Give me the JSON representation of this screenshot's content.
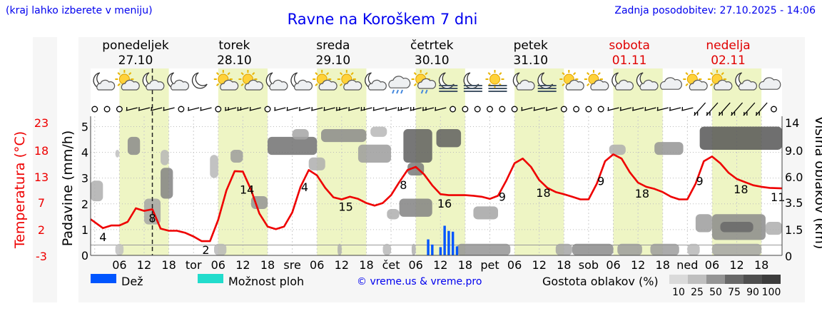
{
  "header": {
    "menu_hint": "(kraj lahko izberete v meniju)",
    "title": "Ravne na Koroškem 7 dni",
    "updated": "Zadnja posodobitev: 27.10.2025 - 14:06"
  },
  "legend": {
    "rain": "Dež",
    "storm": "Možnost ploh",
    "credit": "© vreme.us & vreme.pro",
    "cloud_density": "Gostota oblakov (%)",
    "density_ticks": [
      "10",
      "25",
      "50",
      "75",
      "90",
      "100"
    ]
  },
  "colors": {
    "temperature": "#ee0000",
    "rain": "#0055ff",
    "storm": "#22dccc",
    "day_band": "#eef5c4",
    "night_band": "#ffffff",
    "weekend": "#e00000"
  },
  "chart_data": {
    "type": "line",
    "title": "Ravne na Koroškem 7 dni",
    "y_left_label": "Padavine (mm/h)",
    "y_left_ticks": [
      "0",
      "1",
      "2",
      "3",
      "4",
      "5"
    ],
    "y_left_range": [
      0,
      5.4
    ],
    "y_temp_label": "Temperatura (°C)",
    "y_temp_ticks": [
      "23",
      "18",
      "13",
      "7",
      "2",
      "-3"
    ],
    "y_right_label": "Višina oblakov (km)",
    "y_right_ticks": [
      "14",
      "9.0",
      "6.0",
      "3.5",
      "1.5",
      "0"
    ],
    "days": [
      {
        "name": "ponedeljek",
        "date": "27.10",
        "weekend": false
      },
      {
        "name": "torek",
        "date": "28.10",
        "weekend": false
      },
      {
        "name": "sreda",
        "date": "29.10",
        "weekend": false
      },
      {
        "name": "četrtek",
        "date": "30.10",
        "weekend": false
      },
      {
        "name": "petek",
        "date": "31.10",
        "weekend": false
      },
      {
        "name": "sobota",
        "date": "01.11",
        "weekend": true
      },
      {
        "name": "nedelja",
        "date": "02.11",
        "weekend": true
      }
    ],
    "x_tick_labels": [
      "06",
      "12",
      "18",
      "tor",
      "06",
      "12",
      "18",
      "sre",
      "06",
      "12",
      "18",
      "čet",
      "06",
      "12",
      "18",
      "pet",
      "06",
      "12",
      "18",
      "sob",
      "06",
      "12",
      "18",
      "ned",
      "06",
      "12",
      "18"
    ],
    "x_range_hours": [
      -1,
      167
    ],
    "now_hour": 14,
    "temperature_series": {
      "name": "Temperatura",
      "hours": [
        -1,
        2,
        4,
        6,
        8,
        10,
        12,
        14,
        16,
        18,
        20,
        22,
        24,
        26,
        28,
        30,
        32,
        34,
        36,
        38,
        40,
        42,
        44,
        46,
        48,
        50,
        52,
        54,
        56,
        58,
        60,
        62,
        64,
        66,
        68,
        70,
        72,
        74,
        76,
        78,
        80,
        82,
        84,
        86,
        88,
        90,
        92,
        94,
        96,
        98,
        100,
        102,
        104,
        106,
        108,
        110,
        112,
        114,
        116,
        118,
        120,
        122,
        124,
        126,
        128,
        130,
        132,
        134,
        136,
        138,
        140,
        142,
        144,
        146,
        148,
        150,
        152,
        154,
        156,
        158,
        160,
        162,
        164,
        167
      ],
      "values": [
        5.8,
        4.1,
        4.6,
        4.6,
        5.3,
        7.9,
        7.4,
        7.7,
        4.0,
        3.6,
        3.6,
        3.2,
        2.5,
        1.6,
        1.6,
        5.7,
        11.3,
        15.0,
        14.9,
        11.4,
        6.9,
        4.4,
        3.9,
        4.4,
        7.1,
        12.0,
        15.2,
        14.2,
        11.8,
        10.0,
        9.6,
        10.1,
        9.7,
        8.9,
        8.4,
        8.9,
        10.4,
        12.9,
        15.2,
        15.8,
        14.4,
        12.3,
        10.6,
        10.4,
        10.4,
        10.4,
        10.3,
        10.1,
        9.7,
        10.3,
        13.2,
        16.5,
        17.4,
        15.8,
        13.3,
        11.8,
        11.0,
        10.6,
        10.1,
        9.6,
        9.6,
        12.6,
        16.9,
        18.2,
        17.4,
        14.8,
        12.8,
        12.0,
        11.6,
        11.0,
        10.1,
        9.6,
        9.6,
        12.6,
        16.9,
        17.8,
        16.5,
        14.7,
        13.5,
        12.9,
        12.3,
        12.0,
        11.8,
        11.7
      ]
    },
    "temperature_labels": [
      {
        "hour": 2,
        "text": "4"
      },
      {
        "hour": 14,
        "text": "8"
      },
      {
        "hour": 27,
        "text": "2"
      },
      {
        "hour": 37,
        "text": "14"
      },
      {
        "hour": 51,
        "text": "4"
      },
      {
        "hour": 61,
        "text": "15"
      },
      {
        "hour": 75,
        "text": "8"
      },
      {
        "hour": 85,
        "text": "16"
      },
      {
        "hour": 99,
        "text": "9"
      },
      {
        "hour": 109,
        "text": "18"
      },
      {
        "hour": 123,
        "text": "9"
      },
      {
        "hour": 133,
        "text": "18"
      },
      {
        "hour": 147,
        "text": "9"
      },
      {
        "hour": 157,
        "text": "18"
      },
      {
        "hour": 166,
        "text": "11"
      }
    ],
    "rain_series": {
      "name": "Dež",
      "hours": [
        81,
        82,
        84,
        85,
        86,
        87,
        88
      ],
      "values": [
        0.62,
        0.42,
        0.32,
        1.15,
        0.95,
        0.92,
        0.35
      ]
    },
    "cloud_blocks": [
      {
        "h0": -1,
        "h1": 2,
        "v0": 2.1,
        "v1": 2.9,
        "d": 35
      },
      {
        "h0": 5,
        "h1": 6,
        "v0": 3.8,
        "v1": 4.1,
        "d": 25
      },
      {
        "h0": 8,
        "h1": 11,
        "v0": 3.9,
        "v1": 4.6,
        "d": 55
      },
      {
        "h0": 12,
        "h1": 16,
        "v0": 1.2,
        "v1": 2.2,
        "d": 40
      },
      {
        "h0": 16,
        "h1": 19,
        "v0": 2.2,
        "v1": 3.4,
        "d": 60
      },
      {
        "h0": 16,
        "h1": 18,
        "v0": 3.5,
        "v1": 4.1,
        "d": 30
      },
      {
        "h0": 28,
        "h1": 30,
        "v0": 3.0,
        "v1": 3.9,
        "d": 30
      },
      {
        "h0": 33,
        "h1": 36,
        "v0": 3.6,
        "v1": 4.1,
        "d": 45
      },
      {
        "h0": 38,
        "h1": 42,
        "v0": 1.8,
        "v1": 2.3,
        "d": 50
      },
      {
        "h0": 42,
        "h1": 54,
        "v0": 3.9,
        "v1": 4.6,
        "d": 70
      },
      {
        "h0": 48,
        "h1": 52,
        "v0": 4.5,
        "v1": 4.9,
        "d": 40
      },
      {
        "h0": 55,
        "h1": 66,
        "v0": 4.4,
        "v1": 4.9,
        "d": 55
      },
      {
        "h0": 52,
        "h1": 56,
        "v0": 3.3,
        "v1": 3.8,
        "d": 35
      },
      {
        "h0": 64,
        "h1": 72,
        "v0": 3.6,
        "v1": 4.3,
        "d": 45
      },
      {
        "h0": 67,
        "h1": 71,
        "v0": 4.6,
        "v1": 5.0,
        "d": 30
      },
      {
        "h0": 71,
        "h1": 74,
        "v0": 1.4,
        "v1": 1.8,
        "d": 35
      },
      {
        "h0": 75,
        "h1": 82,
        "v0": 3.6,
        "v1": 4.9,
        "d": 80
      },
      {
        "h0": 76,
        "h1": 80,
        "v0": 3.1,
        "v1": 3.6,
        "d": 65
      },
      {
        "h0": 83,
        "h1": 89,
        "v0": 4.2,
        "v1": 4.9,
        "d": 80
      },
      {
        "h0": 74,
        "h1": 82,
        "v0": 1.5,
        "v1": 2.2,
        "d": 60
      },
      {
        "h0": 92,
        "h1": 98,
        "v0": 1.4,
        "v1": 1.9,
        "d": 40
      },
      {
        "h0": 125,
        "h1": 129,
        "v0": 3.9,
        "v1": 4.3,
        "d": 35
      },
      {
        "h0": 136,
        "h1": 143,
        "v0": 3.9,
        "v1": 4.4,
        "d": 50
      },
      {
        "h0": 147,
        "h1": 167,
        "v0": 4.1,
        "v1": 5.0,
        "d": 85
      },
      {
        "h0": 146,
        "h1": 150,
        "v0": 0.9,
        "v1": 1.6,
        "d": 45
      },
      {
        "h0": 150,
        "h1": 163,
        "v0": 0.6,
        "v1": 1.6,
        "d": 55
      },
      {
        "h0": 152,
        "h1": 160,
        "v0": 0.9,
        "v1": 1.3,
        "d": 75
      },
      {
        "h0": 163,
        "h1": 167,
        "v0": 0.8,
        "v1": 1.3,
        "d": 35
      },
      {
        "h0": 5,
        "h1": 7,
        "v0": 0.0,
        "v1": 0.45,
        "d": 25
      },
      {
        "h0": 29,
        "h1": 32,
        "v0": 0.0,
        "v1": 0.45,
        "d": 30
      },
      {
        "h0": 59,
        "h1": 60,
        "v0": 0.0,
        "v1": 0.45,
        "d": 35
      },
      {
        "h0": 70,
        "h1": 72,
        "v0": 0.0,
        "v1": 0.45,
        "d": 30
      },
      {
        "h0": 77,
        "h1": 78,
        "v0": 0.0,
        "v1": 0.45,
        "d": 35
      },
      {
        "h0": 88,
        "h1": 101,
        "v0": 0.0,
        "v1": 0.45,
        "d": 50
      },
      {
        "h0": 112,
        "h1": 116,
        "v0": 0.0,
        "v1": 0.45,
        "d": 40
      },
      {
        "h0": 116,
        "h1": 126,
        "v0": 0.0,
        "v1": 0.45,
        "d": 55
      },
      {
        "h0": 127,
        "h1": 133,
        "v0": 0.0,
        "v1": 0.45,
        "d": 45
      },
      {
        "h0": 135,
        "h1": 142,
        "v0": 0.0,
        "v1": 0.45,
        "d": 45
      },
      {
        "h0": 144,
        "h1": 147,
        "v0": 0.0,
        "v1": 0.45,
        "d": 30
      },
      {
        "h0": 150,
        "h1": 162,
        "v0": 0.0,
        "v1": 0.45,
        "d": 40
      }
    ],
    "weather_icons": [
      {
        "hour": 0,
        "icon": "moon-cloud-icon"
      },
      {
        "hour": 6,
        "icon": "sun-cloud-icon"
      },
      {
        "hour": 12,
        "icon": "moon-cloud-icon"
      },
      {
        "hour": 18,
        "icon": "moon-cloud-icon"
      },
      {
        "hour": 24,
        "icon": "moon-icon"
      },
      {
        "hour": 30,
        "icon": "sun-cloud-icon"
      },
      {
        "hour": 36,
        "icon": "sun-cloud-icon"
      },
      {
        "hour": 42,
        "icon": "moon-cloud-icon"
      },
      {
        "hour": 48,
        "icon": "moon-cloud-icon"
      },
      {
        "hour": 54,
        "icon": "sun-cloud-icon"
      },
      {
        "hour": 60,
        "icon": "sun-cloud-icon"
      },
      {
        "hour": 66,
        "icon": "moon-cloud-icon"
      },
      {
        "hour": 72,
        "icon": "cloud-rain-icon"
      },
      {
        "hour": 78,
        "icon": "sun-cloud-rain-icon"
      },
      {
        "hour": 84,
        "icon": "moon-fog-icon"
      },
      {
        "hour": 90,
        "icon": "moon-fog-icon"
      },
      {
        "hour": 96,
        "icon": "sun-fog-icon"
      },
      {
        "hour": 102,
        "icon": "moon-cloud-icon"
      },
      {
        "hour": 108,
        "icon": "moon-fog-icon"
      },
      {
        "hour": 114,
        "icon": "sun-cloud-icon"
      },
      {
        "hour": 120,
        "icon": "sun-cloud-icon"
      },
      {
        "hour": 126,
        "icon": "moon-cloud-icon"
      },
      {
        "hour": 132,
        "icon": "moon-cloud-icon"
      },
      {
        "hour": 138,
        "icon": "cloud-icon"
      },
      {
        "hour": 144,
        "icon": "sun-cloud-icon"
      },
      {
        "hour": 150,
        "icon": "sun-cloud-icon"
      },
      {
        "hour": 156,
        "icon": "moon-cloud-icon"
      },
      {
        "hour": 162,
        "icon": "cloud-icon"
      }
    ],
    "wind": [
      {
        "hour": 0,
        "calm": true
      },
      {
        "hour": 3,
        "calm": true
      },
      {
        "hour": 6,
        "calm": true
      },
      {
        "hour": 9,
        "calm": false,
        "barbs": 1
      },
      {
        "hour": 12,
        "calm": false,
        "barbs": 1
      },
      {
        "hour": 15,
        "calm": false,
        "barbs": 1
      },
      {
        "hour": 18,
        "calm": false,
        "barbs": 1
      },
      {
        "hour": 21,
        "calm": true
      },
      {
        "hour": 24,
        "calm": false,
        "barbs": 1
      },
      {
        "hour": 27,
        "calm": false,
        "barbs": 1
      },
      {
        "hour": 30,
        "calm": true
      },
      {
        "hour": 33,
        "calm": false,
        "barbs": 2
      },
      {
        "hour": 36,
        "calm": false,
        "barbs": 2
      },
      {
        "hour": 39,
        "calm": false,
        "barbs": 1
      },
      {
        "hour": 42,
        "calm": true
      },
      {
        "hour": 45,
        "calm": false,
        "barbs": 1
      },
      {
        "hour": 48,
        "calm": false,
        "barbs": 1
      },
      {
        "hour": 51,
        "calm": false,
        "barbs": 1
      },
      {
        "hour": 54,
        "calm": false,
        "barbs": 1
      },
      {
        "hour": 57,
        "calm": false,
        "barbs": 1
      },
      {
        "hour": 60,
        "calm": false,
        "barbs": 2
      },
      {
        "hour": 63,
        "calm": false,
        "barbs": 1
      },
      {
        "hour": 66,
        "calm": false,
        "barbs": 2
      },
      {
        "hour": 69,
        "calm": false,
        "barbs": 1
      },
      {
        "hour": 72,
        "calm": false,
        "barbs": 1
      },
      {
        "hour": 75,
        "calm": false,
        "barbs": 2
      },
      {
        "hour": 78,
        "calm": false,
        "barbs": 2
      },
      {
        "hour": 81,
        "calm": false,
        "barbs": 2
      },
      {
        "hour": 84,
        "calm": false,
        "barbs": 1
      },
      {
        "hour": 87,
        "calm": true
      },
      {
        "hour": 90,
        "calm": true
      },
      {
        "hour": 93,
        "calm": true
      },
      {
        "hour": 96,
        "calm": true
      },
      {
        "hour": 99,
        "calm": true
      },
      {
        "hour": 102,
        "calm": true
      },
      {
        "hour": 105,
        "calm": false,
        "barbs": 1
      },
      {
        "hour": 108,
        "calm": false,
        "barbs": 1
      },
      {
        "hour": 111,
        "calm": false,
        "barbs": 1
      },
      {
        "hour": 114,
        "calm": true
      },
      {
        "hour": 117,
        "calm": true
      },
      {
        "hour": 120,
        "calm": true
      },
      {
        "hour": 123,
        "calm": true
      },
      {
        "hour": 126,
        "calm": false,
        "barbs": 1
      },
      {
        "hour": 129,
        "calm": false,
        "barbs": 1
      },
      {
        "hour": 132,
        "calm": false,
        "barbs": 1
      },
      {
        "hour": 135,
        "calm": false,
        "barbs": 1
      },
      {
        "hour": 138,
        "calm": false,
        "barbs": 1
      },
      {
        "hour": 141,
        "calm": false,
        "barbs": 1
      },
      {
        "hour": 144,
        "calm": false,
        "barbs": 1
      },
      {
        "hour": 147,
        "calm": false,
        "barbs": 2
      },
      {
        "hour": 150,
        "calm": false,
        "barbs": 2
      },
      {
        "hour": 153,
        "calm": false,
        "barbs": 2
      },
      {
        "hour": 156,
        "calm": false,
        "barbs": 2
      },
      {
        "hour": 159,
        "calm": false,
        "barbs": 2
      },
      {
        "hour": 162,
        "calm": false,
        "barbs": 2
      },
      {
        "hour": 165,
        "calm": true
      }
    ]
  }
}
